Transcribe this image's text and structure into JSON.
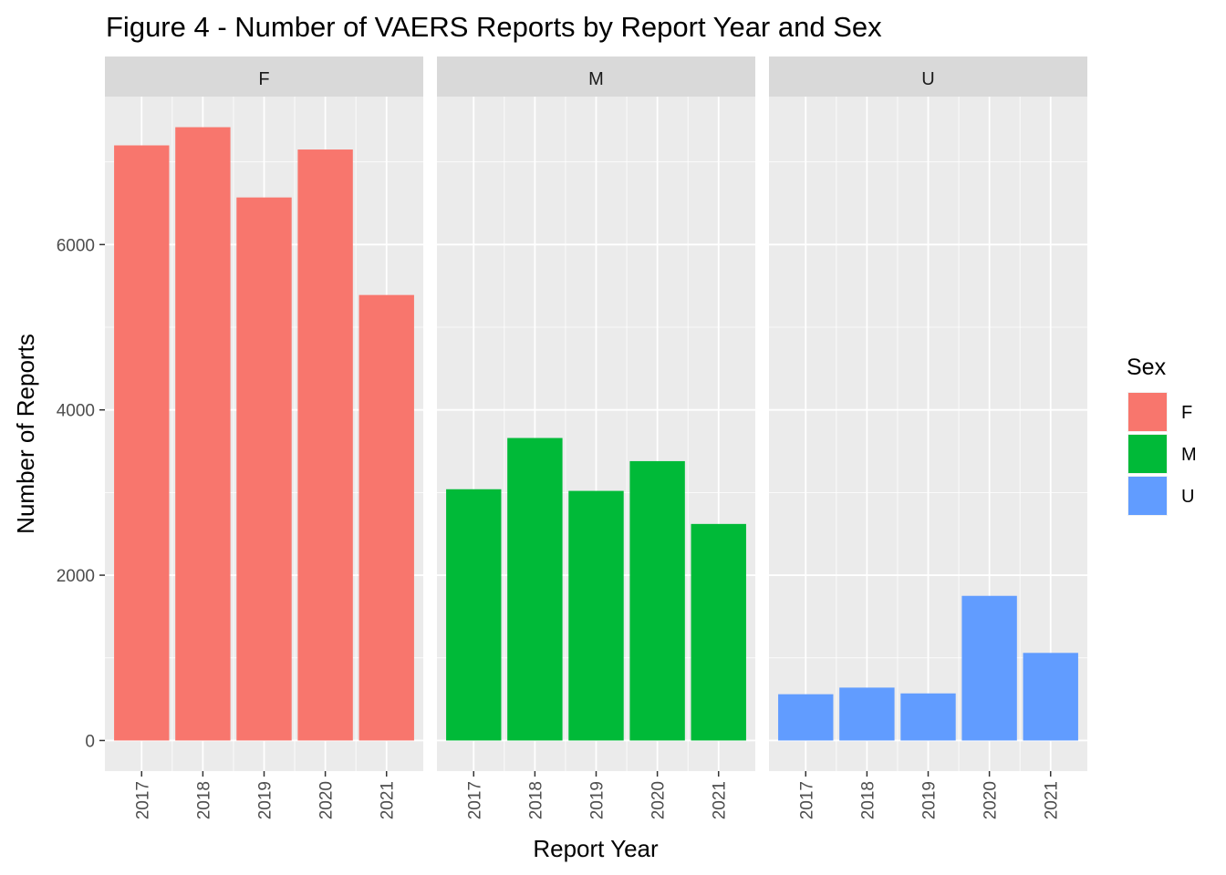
{
  "chart_data": {
    "type": "bar",
    "title": "Figure 4 - Number of VAERS Reports by Report Year and Sex",
    "xlabel": "Report Year",
    "ylabel": "Number of Reports",
    "categories": [
      "2017",
      "2018",
      "2019",
      "2020",
      "2021"
    ],
    "facets": [
      {
        "name": "F",
        "color": "#F8766D",
        "values": [
          7200,
          7420,
          6570,
          7150,
          5390
        ]
      },
      {
        "name": "M",
        "color": "#00BA38",
        "values": [
          3040,
          3660,
          3020,
          3380,
          2620
        ]
      },
      {
        "name": "U",
        "color": "#619CFF",
        "values": [
          560,
          640,
          570,
          1750,
          1060
        ]
      }
    ],
    "ylim": [
      -370,
      7790
    ],
    "yticks": [
      0,
      2000,
      4000,
      6000
    ],
    "grid": true,
    "legend": {
      "title": "Sex",
      "placement": "right",
      "entries": [
        "F",
        "M",
        "U"
      ]
    },
    "colors": {
      "panel_bg": "#EBEBEB",
      "strip_bg": "#D9D9D9",
      "grid": "#FFFFFF"
    }
  }
}
